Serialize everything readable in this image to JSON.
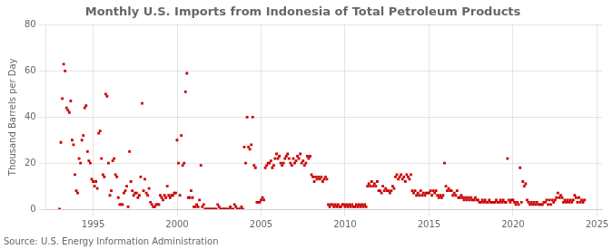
{
  "chart_data": {
    "type": "scatter",
    "title": "Monthly U.S. Imports from Indonesia of Total Petroleum Products",
    "ylabel": "Thousand Barrels per Day",
    "source": "Source: U.S. Energy Information Administration",
    "color": "#cc0000",
    "marker": "square",
    "grid": true,
    "xlim": [
      1992.2,
      2025.3
    ],
    "xticks": [
      1995,
      2000,
      2005,
      2010,
      2015,
      2020,
      2025
    ],
    "ylim": [
      0,
      80
    ],
    "yticks": [
      0,
      20,
      40,
      60,
      80
    ],
    "x": [
      1993.0,
      1993.083,
      1993.167,
      1993.25,
      1993.333,
      1993.417,
      1993.5,
      1993.583,
      1993.667,
      1993.75,
      1993.833,
      1993.917,
      1994.0,
      1994.083,
      1994.167,
      1994.25,
      1994.333,
      1994.417,
      1994.5,
      1994.583,
      1994.667,
      1994.75,
      1994.833,
      1994.917,
      1995.0,
      1995.083,
      1995.167,
      1995.25,
      1995.333,
      1995.417,
      1995.5,
      1995.583,
      1995.667,
      1995.75,
      1995.833,
      1995.917,
      1996.0,
      1996.083,
      1996.167,
      1996.25,
      1996.333,
      1996.417,
      1996.5,
      1996.583,
      1996.667,
      1996.75,
      1996.833,
      1996.917,
      1997.0,
      1997.083,
      1997.167,
      1997.25,
      1997.333,
      1997.417,
      1997.5,
      1997.583,
      1997.667,
      1997.75,
      1997.833,
      1997.917,
      1998.0,
      1998.083,
      1998.167,
      1998.25,
      1998.333,
      1998.417,
      1998.5,
      1998.583,
      1998.667,
      1998.75,
      1998.833,
      1998.917,
      1999.0,
      1999.083,
      1999.167,
      1999.25,
      1999.333,
      1999.417,
      1999.5,
      1999.583,
      1999.667,
      1999.75,
      1999.833,
      1999.917,
      2000.0,
      2000.083,
      2000.167,
      2000.25,
      2000.333,
      2000.417,
      2000.5,
      2000.583,
      2000.667,
      2000.75,
      2000.833,
      2000.917,
      2001.0,
      2001.083,
      2001.167,
      2001.25,
      2001.333,
      2001.417,
      2001.5,
      2001.583,
      2001.667,
      2001.75,
      2001.833,
      2001.917,
      2002.0,
      2002.083,
      2002.167,
      2002.25,
      2002.333,
      2002.417,
      2002.5,
      2002.583,
      2002.667,
      2002.75,
      2002.833,
      2002.917,
      2003.0,
      2003.083,
      2003.167,
      2003.25,
      2003.333,
      2003.417,
      2003.5,
      2003.583,
      2003.667,
      2003.75,
      2003.833,
      2003.917,
      2004.0,
      2004.083,
      2004.167,
      2004.25,
      2004.333,
      2004.417,
      2004.5,
      2004.583,
      2004.667,
      2004.75,
      2004.833,
      2004.917,
      2005.0,
      2005.083,
      2005.167,
      2005.25,
      2005.333,
      2005.417,
      2005.5,
      2005.583,
      2005.667,
      2005.75,
      2005.833,
      2005.917,
      2006.0,
      2006.083,
      2006.167,
      2006.25,
      2006.333,
      2006.417,
      2006.5,
      2006.583,
      2006.667,
      2006.75,
      2006.833,
      2006.917,
      2007.0,
      2007.083,
      2007.167,
      2007.25,
      2007.333,
      2007.417,
      2007.5,
      2007.583,
      2007.667,
      2007.75,
      2007.833,
      2007.917,
      2008.0,
      2008.083,
      2008.167,
      2008.25,
      2008.333,
      2008.417,
      2008.5,
      2008.583,
      2008.667,
      2008.75,
      2008.833,
      2008.917,
      2009.0,
      2009.083,
      2009.167,
      2009.25,
      2009.333,
      2009.417,
      2009.5,
      2009.583,
      2009.667,
      2009.75,
      2009.833,
      2009.917,
      2010.0,
      2010.083,
      2010.167,
      2010.25,
      2010.333,
      2010.417,
      2010.5,
      2010.583,
      2010.667,
      2010.75,
      2010.833,
      2010.917,
      2011.0,
      2011.083,
      2011.167,
      2011.25,
      2011.333,
      2011.417,
      2011.5,
      2011.583,
      2011.667,
      2011.75,
      2011.833,
      2011.917,
      2012.0,
      2012.083,
      2012.167,
      2012.25,
      2012.333,
      2012.417,
      2012.5,
      2012.583,
      2012.667,
      2012.75,
      2012.833,
      2012.917,
      2013.0,
      2013.083,
      2013.167,
      2013.25,
      2013.333,
      2013.417,
      2013.5,
      2013.583,
      2013.667,
      2013.75,
      2013.833,
      2013.917,
      2014.0,
      2014.083,
      2014.167,
      2014.25,
      2014.333,
      2014.417,
      2014.5,
      2014.583,
      2014.667,
      2014.75,
      2014.833,
      2014.917,
      2015.0,
      2015.083,
      2015.167,
      2015.25,
      2015.333,
      2015.417,
      2015.5,
      2015.583,
      2015.667,
      2015.75,
      2015.833,
      2015.917,
      2016.0,
      2016.083,
      2016.167,
      2016.25,
      2016.333,
      2016.417,
      2016.5,
      2016.583,
      2016.667,
      2016.75,
      2016.833,
      2016.917,
      2017.0,
      2017.083,
      2017.167,
      2017.25,
      2017.333,
      2017.417,
      2017.5,
      2017.583,
      2017.667,
      2017.75,
      2017.833,
      2017.917,
      2018.0,
      2018.083,
      2018.167,
      2018.25,
      2018.333,
      2018.417,
      2018.5,
      2018.583,
      2018.667,
      2018.75,
      2018.833,
      2018.917,
      2019.0,
      2019.083,
      2019.167,
      2019.25,
      2019.333,
      2019.417,
      2019.5,
      2019.583,
      2019.667,
      2019.75,
      2019.833,
      2019.917,
      2020.0,
      2020.083,
      2020.167,
      2020.25,
      2020.333,
      2020.417,
      2020.5,
      2020.583,
      2020.667,
      2020.75,
      2020.833,
      2020.917,
      2021.0,
      2021.083,
      2021.167,
      2021.25,
      2021.333,
      2021.417,
      2021.5,
      2021.583,
      2021.667,
      2021.75,
      2021.833,
      2021.917,
      2022.0,
      2022.083,
      2022.167,
      2022.25,
      2022.333,
      2022.417,
      2022.5,
      2022.583,
      2022.667,
      2022.75,
      2022.833,
      2022.917,
      2023.0,
      2023.083,
      2023.167,
      2023.25,
      2023.333,
      2023.417,
      2023.5,
      2023.583,
      2023.667,
      2023.75,
      2023.833,
      2023.917,
      2024.0,
      2024.083,
      2024.167,
      2024.25
    ],
    "values": [
      0,
      29,
      48,
      63,
      60,
      44,
      43,
      42,
      47,
      30,
      28,
      15,
      8,
      7,
      22,
      20,
      30,
      32,
      44,
      45,
      25,
      21,
      20,
      13,
      12,
      10,
      12,
      9,
      33,
      34,
      22,
      15,
      14,
      50,
      49,
      20,
      6,
      8,
      21,
      22,
      15,
      14,
      5,
      2,
      2,
      2,
      7,
      8,
      10,
      1,
      25,
      12,
      8,
      6,
      7,
      7,
      5,
      6,
      14,
      46,
      8,
      13,
      7,
      6,
      9,
      3,
      2,
      1,
      1,
      2,
      2,
      2,
      6,
      5,
      4,
      6,
      5,
      10,
      6,
      5,
      6,
      6,
      7,
      7,
      30,
      20,
      6,
      32,
      19,
      20,
      51,
      59,
      5,
      5,
      8,
      5,
      1,
      1,
      2,
      1,
      4,
      19,
      1,
      2,
      0,
      0,
      0,
      0,
      0,
      0,
      0,
      0,
      0,
      2,
      1,
      0,
      0,
      0,
      0,
      0,
      0,
      0,
      1,
      0,
      0,
      2,
      1,
      0,
      0,
      0,
      1,
      0,
      27,
      20,
      40,
      27,
      26,
      28,
      40,
      19,
      18,
      3,
      3,
      3,
      4,
      5,
      4,
      18,
      19,
      20,
      20,
      21,
      18,
      19,
      22,
      24,
      22,
      23,
      20,
      19,
      20,
      22,
      23,
      24,
      22,
      20,
      19,
      22,
      20,
      21,
      23,
      22,
      24,
      20,
      21,
      19,
      20,
      23,
      22,
      23,
      15,
      14,
      12,
      14,
      13,
      14,
      13,
      14,
      12,
      13,
      14,
      13,
      2,
      1,
      2,
      2,
      1,
      2,
      1,
      2,
      1,
      1,
      2,
      2,
      1,
      2,
      1,
      2,
      1,
      2,
      1,
      1,
      2,
      1,
      2,
      1,
      2,
      1,
      2,
      1,
      10,
      11,
      10,
      12,
      10,
      11,
      10,
      12,
      8,
      8,
      7,
      10,
      8,
      9,
      8,
      8,
      7,
      8,
      10,
      9,
      14,
      15,
      13,
      14,
      15,
      13,
      14,
      12,
      15,
      14,
      13,
      15,
      8,
      7,
      8,
      6,
      7,
      6,
      8,
      6,
      7,
      6,
      7,
      7,
      7,
      8,
      6,
      8,
      7,
      8,
      6,
      5,
      6,
      5,
      6,
      20,
      10,
      8,
      9,
      8,
      8,
      6,
      7,
      6,
      8,
      5,
      5,
      6,
      5,
      4,
      5,
      4,
      5,
      4,
      5,
      4,
      4,
      5,
      4,
      4,
      3,
      3,
      4,
      3,
      4,
      3,
      3,
      4,
      3,
      3,
      3,
      3,
      4,
      3,
      3,
      4,
      3,
      4,
      3,
      3,
      22,
      4,
      3,
      4,
      4,
      3,
      2,
      3,
      2,
      18,
      3,
      12,
      10,
      11,
      4,
      3,
      2,
      3,
      2,
      3,
      2,
      3,
      2,
      2,
      2,
      2,
      3,
      3,
      4,
      2,
      4,
      2,
      4,
      3,
      4,
      5,
      7,
      5,
      6,
      5,
      3,
      4,
      3,
      4,
      3,
      4,
      3,
      4,
      6,
      5,
      3,
      5,
      3,
      4,
      3,
      4
    ]
  }
}
